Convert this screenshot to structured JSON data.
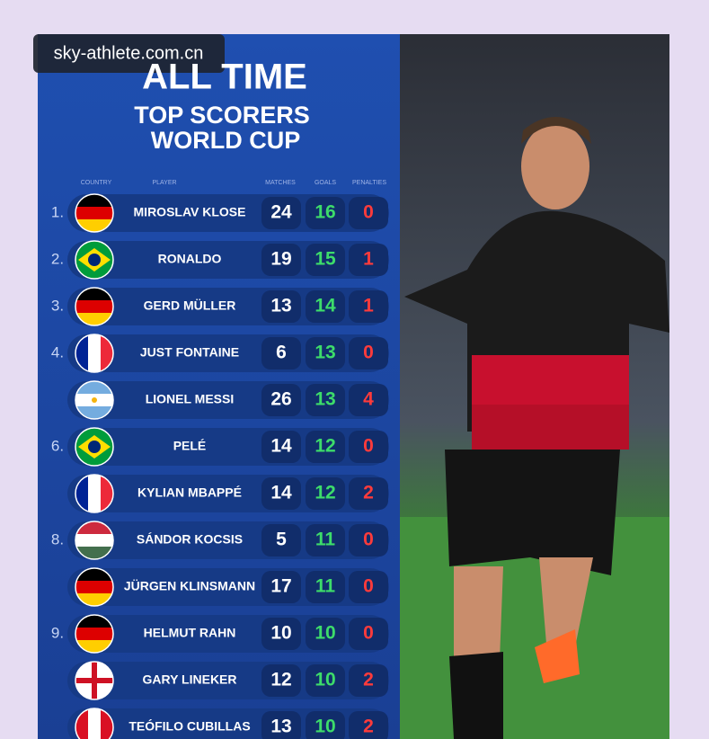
{
  "watermark": "sky-athlete.com.cn",
  "header": {
    "title": "ALL TIME",
    "subtitle_line1": "TOP SCORERS",
    "subtitle_line2": "WORLD CUP"
  },
  "table": {
    "columns": [
      "COUNTRY",
      "PLAYER",
      "MATCHES",
      "GOALS",
      "PENALTIES"
    ],
    "rows": [
      {
        "rank": "1.",
        "player": "MIROSLAV KLOSE",
        "matches": 24,
        "goals": 16,
        "penalties": 0
      },
      {
        "rank": "2.",
        "player": "RONALDO",
        "matches": 19,
        "goals": 15,
        "penalties": 1
      },
      {
        "rank": "3.",
        "player": "GERD MÜLLER",
        "matches": 13,
        "goals": 14,
        "penalties": 1
      },
      {
        "rank": "4.",
        "player": "JUST FONTAINE",
        "matches": 6,
        "goals": 13,
        "penalties": 0
      },
      {
        "rank": null,
        "player": "LIONEL MESSI",
        "matches": 26,
        "goals": 13,
        "penalties": 4
      },
      {
        "rank": "6.",
        "player": "PELÉ",
        "matches": 14,
        "goals": 12,
        "penalties": 0
      },
      {
        "rank": null,
        "player": "KYLIAN MBAPPÉ",
        "matches": 14,
        "goals": 12,
        "penalties": 2
      },
      {
        "rank": "8.",
        "player": "SÁNDOR KOCSIS",
        "matches": 5,
        "goals": 11,
        "penalties": 0
      },
      {
        "rank": null,
        "player": "JÜRGEN KLINSMANN",
        "matches": 17,
        "goals": 11,
        "penalties": 0
      },
      {
        "rank": "9.",
        "player": "HELMUT RAHN",
        "matches": 10,
        "goals": 10,
        "penalties": 0
      },
      {
        "rank": null,
        "player": "GARY LINEKER",
        "matches": 12,
        "goals": 10,
        "penalties": 2
      },
      {
        "rank": null,
        "player": "TEÓFILO CUBILLAS",
        "matches": 13,
        "goals": 10,
        "penalties": 2
      }
    ]
  }
}
